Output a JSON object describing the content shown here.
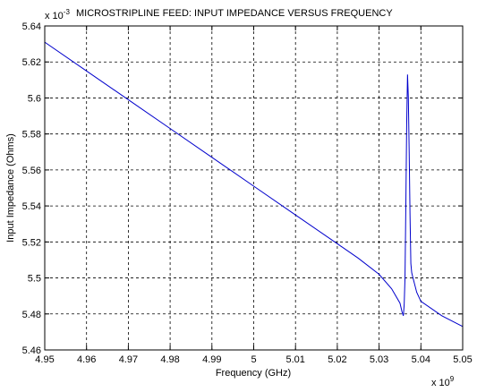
{
  "chart_data": {
    "type": "line",
    "title": "MICROSTRIPLINE FEED: INPUT IMPEDANCE VERSUS FREQUENCY",
    "xlabel": "Frequency (GHz)",
    "ylabel": "Input Impedance (Ohms)",
    "y_exponent_label": "x 10",
    "y_exponent_power": "-3",
    "x_exponent_label": "x 10",
    "x_exponent_power": "9",
    "xlim": [
      4.95,
      5.05
    ],
    "ylim": [
      5.46,
      5.64
    ],
    "x_ticks": [
      "4.95",
      "4.96",
      "4.97",
      "4.98",
      "4.99",
      "5",
      "5.01",
      "5.02",
      "5.03",
      "5.04",
      "5.05"
    ],
    "y_ticks": [
      "5.46",
      "5.48",
      "5.5",
      "5.52",
      "5.54",
      "5.56",
      "5.58",
      "5.6",
      "5.62",
      "5.64"
    ],
    "grid": true,
    "grid_style": "dashed",
    "line_color": "#0000cc",
    "series": [
      {
        "x": [
          4.95,
          4.96,
          4.97,
          4.98,
          4.99,
          5.0,
          5.01,
          5.02,
          5.025,
          5.03,
          5.033,
          5.035,
          5.0355,
          5.0358,
          5.036,
          5.0362,
          5.0364,
          5.0366,
          5.0368,
          5.037,
          5.0372,
          5.0374,
          5.0376,
          5.0378,
          5.038,
          5.039,
          5.04,
          5.045,
          5.05
        ],
        "y": [
          5.631,
          5.615,
          5.599,
          5.583,
          5.567,
          5.551,
          5.535,
          5.519,
          5.511,
          5.502,
          5.494,
          5.486,
          5.481,
          5.479,
          5.485,
          5.5,
          5.54,
          5.585,
          5.613,
          5.6,
          5.57,
          5.535,
          5.508,
          5.503,
          5.501,
          5.492,
          5.487,
          5.479,
          5.473
        ]
      }
    ]
  }
}
